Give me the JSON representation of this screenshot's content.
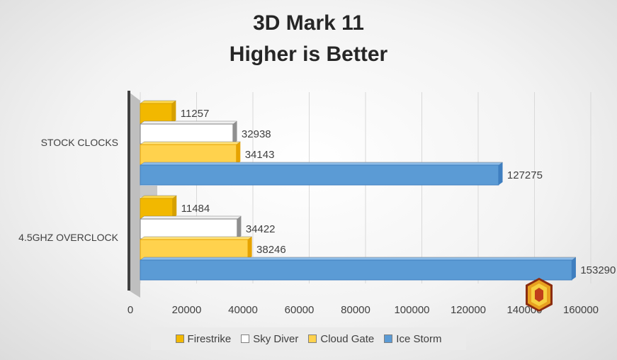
{
  "chart_data": {
    "type": "bar",
    "orientation": "horizontal",
    "title": "3D Mark 11",
    "subtitle": "Higher is Better",
    "categories": [
      "STOCK CLOCKS",
      "4.5GHZ OVERCLOCK"
    ],
    "series": [
      {
        "name": "Firestrike",
        "values": [
          11257,
          11484
        ],
        "color": "#f2b800"
      },
      {
        "name": "Sky Diver",
        "values": [
          32938,
          34422
        ],
        "color": "#ffffff"
      },
      {
        "name": "Cloud Gate",
        "values": [
          34143,
          38246
        ],
        "color": "#ffd24d"
      },
      {
        "name": "Ice Storm",
        "values": [
          127275,
          153290
        ],
        "color": "#5b9bd5"
      }
    ],
    "xlim": [
      0,
      160000
    ],
    "xticks": [
      0,
      20000,
      40000,
      60000,
      80000,
      100000,
      120000,
      140000,
      160000
    ],
    "xticklabels": [
      "0",
      "20000",
      "40000",
      "60000",
      "80000",
      "100000",
      "120000",
      "140000",
      "160000"
    ],
    "grid": "vertical",
    "legend_position": "bottom"
  }
}
